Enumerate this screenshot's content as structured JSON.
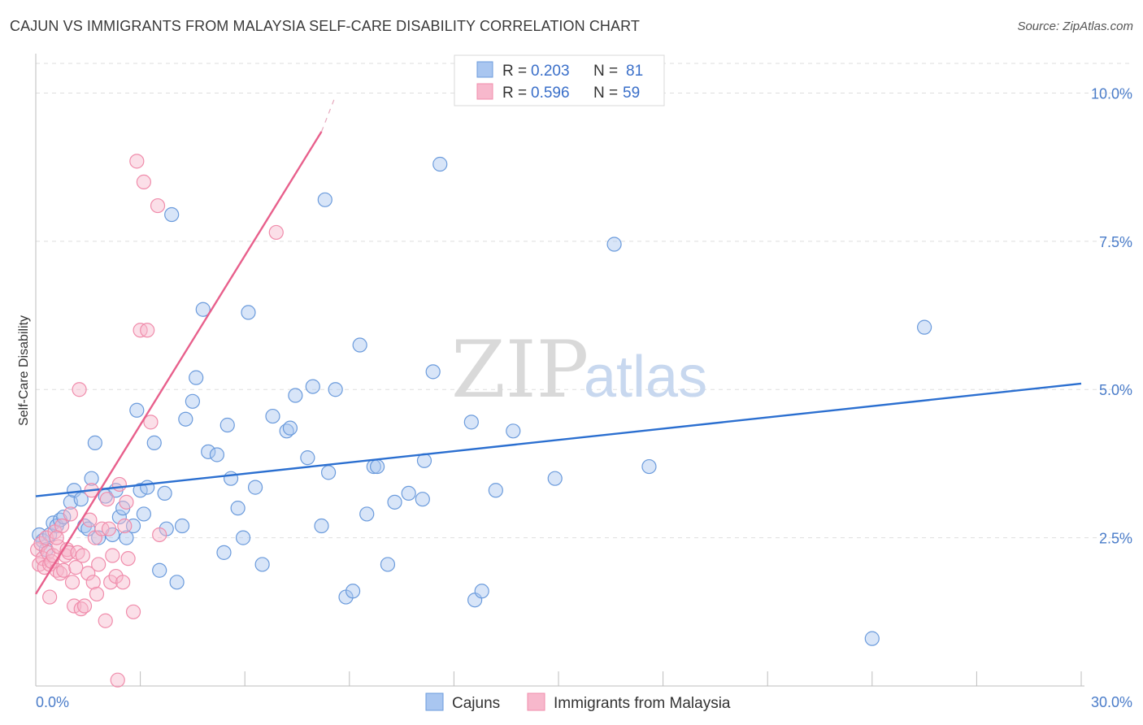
{
  "title": "CAJUN VS IMMIGRANTS FROM MALAYSIA SELF-CARE DISABILITY CORRELATION CHART",
  "source": "Source: ZipAtlas.com",
  "watermark": {
    "zip": "ZIP",
    "atlas": "atlas"
  },
  "legend": {
    "r_label": "R =",
    "n_label": "N =",
    "entries": [
      {
        "r": "0.203",
        "n": "81",
        "color": "#a9c6f0"
      },
      {
        "r": "0.596",
        "n": "59",
        "color": "#f7b8cc"
      }
    ]
  },
  "chart_data": {
    "type": "scatter",
    "title": "CAJUN VS IMMIGRANTS FROM MALAYSIA SELF-CARE DISABILITY CORRELATION CHART",
    "xlabel": "",
    "ylabel": "Self-Care Disability",
    "xlim": [
      0,
      30
    ],
    "ylim": [
      0,
      10.5
    ],
    "x_tick_labels": [
      "0.0%",
      "30.0%"
    ],
    "y_ticks": [
      2.5,
      5.0,
      7.5,
      10.0
    ],
    "y_tick_labels": [
      "2.5%",
      "5.0%",
      "7.5%",
      "10.0%"
    ],
    "grid": "horizontal dashed",
    "legend_position": "top-center",
    "series": [
      {
        "name": "Cajuns",
        "color": "#6b9bdc",
        "fill": "#a9c6f0",
        "trend": {
          "x": [
            0,
            30
          ],
          "y": [
            3.2,
            5.1
          ],
          "color": "#2b6fd0"
        },
        "points": [
          [
            0.1,
            2.55
          ],
          [
            0.2,
            2.45
          ],
          [
            0.3,
            2.3
          ],
          [
            0.4,
            2.55
          ],
          [
            0.5,
            2.75
          ],
          [
            0.6,
            2.7
          ],
          [
            0.7,
            2.8
          ],
          [
            0.8,
            2.85
          ],
          [
            1.0,
            3.1
          ],
          [
            1.1,
            3.3
          ],
          [
            1.3,
            3.15
          ],
          [
            1.4,
            2.7
          ],
          [
            1.5,
            2.65
          ],
          [
            1.6,
            3.5
          ],
          [
            1.7,
            4.1
          ],
          [
            1.8,
            2.5
          ],
          [
            2.0,
            3.2
          ],
          [
            2.2,
            2.55
          ],
          [
            2.3,
            3.3
          ],
          [
            2.4,
            2.85
          ],
          [
            2.5,
            3.0
          ],
          [
            2.6,
            2.5
          ],
          [
            2.8,
            2.7
          ],
          [
            2.9,
            4.65
          ],
          [
            3.0,
            3.3
          ],
          [
            3.1,
            2.9
          ],
          [
            3.2,
            3.35
          ],
          [
            3.4,
            4.1
          ],
          [
            3.55,
            1.95
          ],
          [
            3.7,
            3.25
          ],
          [
            3.75,
            2.65
          ],
          [
            3.9,
            7.95
          ],
          [
            4.05,
            1.75
          ],
          [
            4.2,
            2.7
          ],
          [
            4.3,
            4.5
          ],
          [
            4.5,
            4.8
          ],
          [
            4.6,
            5.2
          ],
          [
            4.8,
            6.35
          ],
          [
            4.95,
            3.95
          ],
          [
            5.2,
            3.9
          ],
          [
            5.4,
            2.25
          ],
          [
            5.5,
            4.4
          ],
          [
            5.6,
            3.5
          ],
          [
            5.8,
            3.0
          ],
          [
            5.95,
            2.5
          ],
          [
            6.1,
            6.3
          ],
          [
            6.3,
            3.35
          ],
          [
            6.5,
            2.05
          ],
          [
            6.8,
            4.55
          ],
          [
            7.2,
            4.3
          ],
          [
            7.3,
            4.35
          ],
          [
            7.45,
            4.9
          ],
          [
            7.8,
            3.85
          ],
          [
            7.95,
            5.05
          ],
          [
            8.2,
            2.7
          ],
          [
            8.3,
            8.2
          ],
          [
            8.4,
            3.6
          ],
          [
            8.6,
            5.0
          ],
          [
            8.9,
            1.5
          ],
          [
            9.1,
            1.6
          ],
          [
            9.3,
            5.75
          ],
          [
            9.5,
            2.9
          ],
          [
            9.7,
            3.7
          ],
          [
            9.8,
            3.7
          ],
          [
            10.1,
            2.05
          ],
          [
            10.3,
            3.1
          ],
          [
            10.7,
            3.25
          ],
          [
            11.1,
            3.15
          ],
          [
            11.15,
            3.8
          ],
          [
            11.4,
            5.3
          ],
          [
            11.6,
            8.8
          ],
          [
            12.5,
            4.45
          ],
          [
            12.6,
            1.45
          ],
          [
            12.8,
            1.6
          ],
          [
            13.2,
            3.3
          ],
          [
            13.7,
            4.3
          ],
          [
            14.9,
            3.5
          ],
          [
            16.6,
            7.45
          ],
          [
            17.6,
            3.7
          ],
          [
            24.0,
            0.8
          ],
          [
            25.5,
            6.05
          ]
        ]
      },
      {
        "name": "Immigrants from Malaysia",
        "color": "#f08cab",
        "fill": "#f7b8cc",
        "trend": {
          "x": [
            0,
            8.2
          ],
          "y": [
            1.55,
            9.35
          ],
          "dashed_to": [
            8.6,
            9.95
          ],
          "color": "#e8608c"
        },
        "points": [
          [
            0.05,
            2.3
          ],
          [
            0.1,
            2.05
          ],
          [
            0.15,
            2.4
          ],
          [
            0.2,
            2.15
          ],
          [
            0.25,
            2.0
          ],
          [
            0.3,
            2.5
          ],
          [
            0.35,
            2.25
          ],
          [
            0.4,
            2.05
          ],
          [
            0.45,
            2.1
          ],
          [
            0.5,
            2.2
          ],
          [
            0.55,
            2.6
          ],
          [
            0.6,
            1.95
          ],
          [
            0.65,
            2.35
          ],
          [
            0.7,
            1.9
          ],
          [
            0.75,
            2.7
          ],
          [
            0.8,
            1.95
          ],
          [
            0.85,
            2.2
          ],
          [
            0.9,
            2.3
          ],
          [
            0.95,
            2.25
          ],
          [
            1.0,
            2.9
          ],
          [
            1.05,
            1.75
          ],
          [
            1.1,
            1.35
          ],
          [
            1.15,
            2.0
          ],
          [
            1.2,
            2.25
          ],
          [
            1.25,
            5.0
          ],
          [
            1.3,
            1.3
          ],
          [
            1.35,
            2.2
          ],
          [
            1.4,
            1.35
          ],
          [
            1.5,
            1.9
          ],
          [
            1.55,
            2.8
          ],
          [
            1.6,
            3.3
          ],
          [
            1.65,
            1.75
          ],
          [
            1.7,
            2.5
          ],
          [
            1.75,
            1.55
          ],
          [
            1.8,
            2.05
          ],
          [
            1.9,
            2.65
          ],
          [
            2.0,
            1.1
          ],
          [
            2.05,
            3.15
          ],
          [
            2.1,
            2.65
          ],
          [
            2.15,
            1.75
          ],
          [
            2.2,
            2.2
          ],
          [
            2.3,
            1.85
          ],
          [
            2.35,
            0.1
          ],
          [
            2.4,
            3.4
          ],
          [
            2.5,
            1.75
          ],
          [
            2.55,
            2.7
          ],
          [
            2.6,
            3.1
          ],
          [
            2.65,
            2.15
          ],
          [
            2.8,
            1.25
          ],
          [
            2.9,
            8.85
          ],
          [
            3.0,
            6.0
          ],
          [
            3.1,
            8.5
          ],
          [
            3.2,
            6.0
          ],
          [
            3.3,
            4.45
          ],
          [
            3.5,
            8.1
          ],
          [
            3.55,
            2.55
          ],
          [
            6.9,
            7.65
          ],
          [
            0.4,
            1.5
          ],
          [
            0.6,
            2.5
          ]
        ]
      }
    ]
  },
  "bottom_legend": [
    "Cajuns",
    "Immigrants from Malaysia"
  ]
}
